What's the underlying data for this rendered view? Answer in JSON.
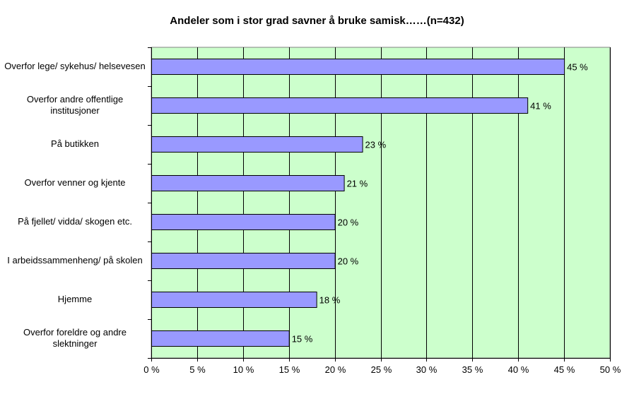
{
  "chart_data": {
    "type": "bar",
    "orientation": "horizontal",
    "title": "Andeler som i stor grad savner å bruke samisk……(n=432)",
    "categories": [
      "Overfor lege/ sykehus/ helsevesen",
      "Overfor andre offentlige institusjoner",
      "På butikken",
      "Overfor venner og kjente",
      "På fjellet/ vidda/ skogen etc.",
      "I arbeidssammenheng/ på skolen",
      "Hjemme",
      "Overfor foreldre og andre slektninger"
    ],
    "values": [
      45,
      41,
      23,
      21,
      20,
      20,
      18,
      15
    ],
    "value_labels": [
      "45 %",
      "41 %",
      "23 %",
      "21 %",
      "20 %",
      "20 %",
      "18 %",
      "15 %"
    ],
    "xlim": [
      0,
      50
    ],
    "xticks": [
      "0 %",
      "5 %",
      "10 %",
      "15 %",
      "20 %",
      "25 %",
      "30 %",
      "35 %",
      "40 %",
      "45 %",
      "50 %"
    ],
    "grid": true,
    "legend": "none",
    "colors": {
      "plot_background": "#ccffcc",
      "bar_fill": "#9999ff",
      "bar_stroke": "#000000",
      "gridline": "#000000"
    }
  }
}
